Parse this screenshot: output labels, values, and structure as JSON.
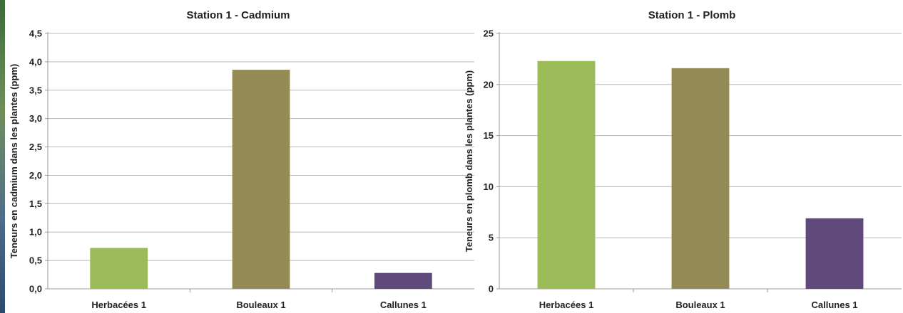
{
  "chart_data": [
    {
      "type": "bar",
      "title": "Station 1 - Cadmium",
      "xlabel": "",
      "ylabel": "Teneurs en cadmium dans les plantes (ppm)",
      "categories": [
        "Herbacées 1",
        "Bouleaux 1",
        "Callunes 1"
      ],
      "values": [
        0.72,
        3.86,
        0.28
      ],
      "colors": [
        "#9bbb59",
        "#948a54",
        "#604a7b"
      ],
      "ylim": [
        0,
        4.5
      ],
      "yticks": [
        "0,0",
        "0,5",
        "1,0",
        "1,5",
        "2,0",
        "2,5",
        "3,0",
        "3,5",
        "4,0",
        "4,5"
      ],
      "grid": true,
      "legend": "none"
    },
    {
      "type": "bar",
      "title": "Station 1 - Plomb",
      "xlabel": "",
      "ylabel": "Teneurs en plomb dans les plantes (ppm)",
      "categories": [
        "Herbacées 1",
        "Bouleaux 1",
        "Callunes 1"
      ],
      "values": [
        22.3,
        21.6,
        6.9
      ],
      "colors": [
        "#9bbb59",
        "#948a54",
        "#604a7b"
      ],
      "ylim": [
        0,
        25
      ],
      "yticks": [
        "0",
        "5",
        "10",
        "15",
        "20",
        "25"
      ],
      "grid": true,
      "legend": "none"
    }
  ]
}
